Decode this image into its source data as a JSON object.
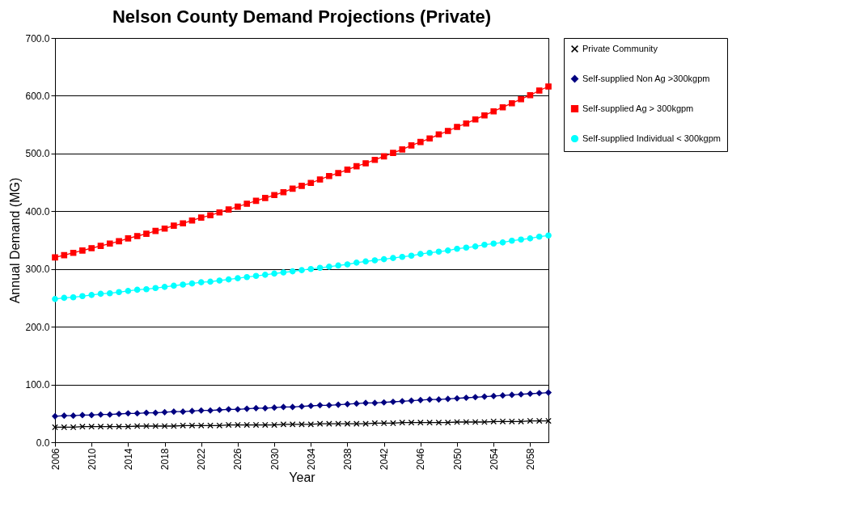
{
  "chart_data": {
    "type": "line",
    "title": "Nelson County Demand Projections (Private)",
    "xlabel": "Year",
    "ylabel": "Annual Demand (MG)",
    "x": [
      2006,
      2007,
      2008,
      2009,
      2010,
      2011,
      2012,
      2013,
      2014,
      2015,
      2016,
      2017,
      2018,
      2019,
      2020,
      2021,
      2022,
      2023,
      2024,
      2025,
      2026,
      2027,
      2028,
      2029,
      2030,
      2031,
      2032,
      2033,
      2034,
      2035,
      2036,
      2037,
      2038,
      2039,
      2040,
      2041,
      2042,
      2043,
      2044,
      2045,
      2046,
      2047,
      2048,
      2049,
      2050,
      2051,
      2052,
      2053,
      2054,
      2055,
      2056,
      2057,
      2058,
      2059,
      2060
    ],
    "xlim": [
      2006,
      2060
    ],
    "xticks": [
      2006,
      2010,
      2014,
      2018,
      2022,
      2026,
      2030,
      2034,
      2038,
      2042,
      2046,
      2050,
      2054,
      2058
    ],
    "ylim": [
      0,
      700
    ],
    "yticks": [
      {
        "value": 0,
        "label": "0.0"
      },
      {
        "value": 100,
        "label": "100.0"
      },
      {
        "value": 200,
        "label": "200.0"
      },
      {
        "value": 300,
        "label": "300.0"
      },
      {
        "value": 400,
        "label": "400.0"
      },
      {
        "value": 500,
        "label": "500.0"
      },
      {
        "value": 600,
        "label": "600.0"
      },
      {
        "value": 700,
        "label": "700.0"
      }
    ],
    "grid": "y",
    "legend": "right",
    "series": [
      {
        "name": "Private Community",
        "color": "#000000",
        "marker": "cross",
        "values": [
          26,
          26,
          26,
          27,
          27,
          27,
          27,
          27,
          27,
          28,
          28,
          28,
          28,
          28,
          29,
          29,
          29,
          29,
          29,
          30,
          30,
          30,
          30,
          30,
          30,
          31,
          31,
          31,
          31,
          32,
          32,
          32,
          32,
          32,
          32,
          33,
          33,
          33,
          34,
          34,
          34,
          34,
          34,
          34,
          35,
          35,
          35,
          35,
          36,
          36,
          36,
          36,
          37,
          37,
          37
        ]
      },
      {
        "name": "Self-supplied Non Ag >300kgpm",
        "color": "#000080",
        "marker": "diamond",
        "values": [
          45,
          46,
          46,
          47,
          47,
          48,
          48,
          49,
          50,
          50,
          51,
          51,
          52,
          53,
          53,
          54,
          55,
          55,
          56,
          57,
          57,
          58,
          59,
          59,
          60,
          61,
          61,
          62,
          63,
          64,
          64,
          65,
          66,
          67,
          68,
          68,
          69,
          70,
          71,
          72,
          73,
          74,
          74,
          75,
          76,
          77,
          78,
          79,
          80,
          81,
          82,
          83,
          84,
          85,
          86
        ]
      },
      {
        "name": "Self-supplied Ag > 300kgpm",
        "color": "#ff0000",
        "marker": "square",
        "values": [
          320,
          324,
          328,
          332,
          336,
          340,
          344,
          348,
          353,
          357,
          361,
          366,
          370,
          375,
          379,
          384,
          389,
          393,
          398,
          403,
          408,
          413,
          418,
          423,
          428,
          433,
          439,
          444,
          449,
          455,
          461,
          466,
          472,
          478,
          483,
          489,
          495,
          501,
          507,
          514,
          520,
          526,
          533,
          539,
          546,
          552,
          559,
          566,
          573,
          580,
          587,
          594,
          601,
          609,
          616
        ]
      },
      {
        "name": "Self-supplied Individual < 300kgpm",
        "color": "#00ffff",
        "marker": "circle",
        "values": [
          248,
          250,
          251,
          253,
          255,
          257,
          258,
          260,
          262,
          264,
          265,
          267,
          269,
          271,
          273,
          275,
          277,
          278,
          280,
          282,
          284,
          286,
          288,
          290,
          292,
          294,
          296,
          298,
          300,
          302,
          304,
          306,
          308,
          311,
          313,
          315,
          317,
          319,
          321,
          323,
          326,
          328,
          330,
          332,
          335,
          337,
          339,
          342,
          344,
          346,
          349,
          351,
          353,
          356,
          358
        ]
      }
    ]
  }
}
